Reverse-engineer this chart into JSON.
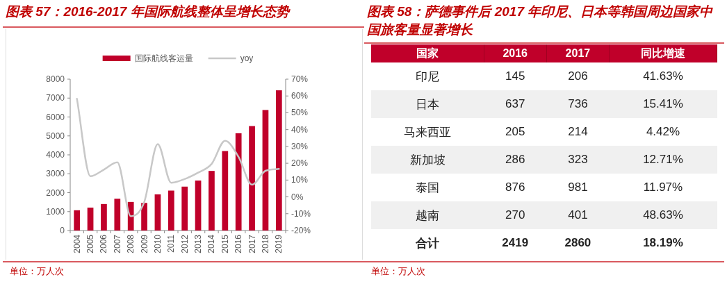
{
  "chart_data": [
    {
      "type": "bar",
      "title": "图表 57：2016-2017 年国际航线整体呈增长态势",
      "categories": [
        "2004",
        "2005",
        "2006",
        "2007",
        "2008",
        "2009",
        "2010",
        "2011",
        "2012",
        "2013",
        "2014",
        "2015",
        "2016",
        "2017",
        "2018",
        "2019"
      ],
      "series": [
        {
          "name": "国际航线客运量",
          "type": "bar",
          "color": "#c0002a",
          "values": [
            1070,
            1210,
            1400,
            1680,
            1510,
            1460,
            1910,
            2110,
            2320,
            2640,
            3150,
            4200,
            5140,
            5520,
            6370,
            7410
          ]
        },
        {
          "name": "yoy",
          "type": "line",
          "axis": "y2",
          "color": "#c8c8c8",
          "values": [
            58.3,
            12.3,
            16.2,
            20.6,
            -11.5,
            -3,
            31.4,
            8.4,
            10.6,
            14.4,
            19.6,
            33.4,
            23.8,
            7.2,
            15.5,
            16.6
          ]
        }
      ],
      "ylim": [
        0,
        8000
      ],
      "yticks": [
        0,
        1000,
        2000,
        3000,
        4000,
        5000,
        6000,
        7000,
        8000
      ],
      "y2lim": [
        -20,
        70
      ],
      "y2ticks": [
        {
          "value": -20,
          "label": "-20%"
        },
        {
          "value": -10,
          "label": "-10%"
        },
        {
          "value": 0,
          "label": "0%"
        },
        {
          "value": 10,
          "label": "10%"
        },
        {
          "value": 20,
          "label": "20%"
        },
        {
          "value": 30,
          "label": "30%"
        },
        {
          "value": 40,
          "label": "40%"
        },
        {
          "value": 50,
          "label": "50%"
        },
        {
          "value": 60,
          "label": "60%"
        },
        {
          "value": 70,
          "label": "70%"
        }
      ],
      "legend": "top",
      "grid": false,
      "marker": "none",
      "annotations": [
        "单位：万人次"
      ]
    },
    {
      "type": "other",
      "title": "图表 58：萨德事件后 2017 年印尼、日本等韩国周边国家中国旅客量显著增长",
      "categories": [
        "国家",
        "2016",
        "2017",
        "同比增速"
      ],
      "y_categories": [
        "印尼",
        "日本",
        "马来西亚",
        "新加坡",
        "泰国",
        "越南",
        "合计"
      ],
      "cell_labels": [
        [
          "145",
          "206",
          "41.63%"
        ],
        [
          "637",
          "736",
          "15.41%"
        ],
        [
          "205",
          "214",
          "4.42%"
        ],
        [
          "286",
          "323",
          "12.71%"
        ],
        [
          "876",
          "981",
          "11.97%"
        ],
        [
          "270",
          "401",
          "48.63%"
        ],
        [
          "2419",
          "2860",
          "18.19%"
        ]
      ],
      "annotations": [
        "单位：万人次"
      ]
    }
  ]
}
